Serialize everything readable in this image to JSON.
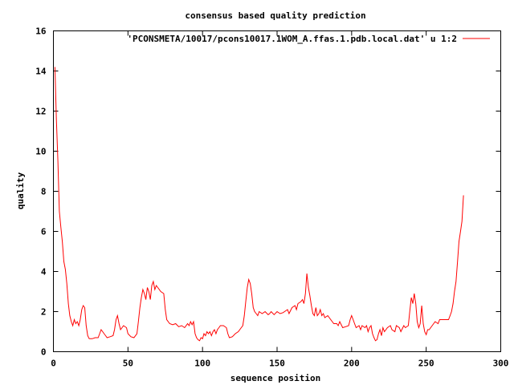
{
  "chart_data": {
    "type": "line",
    "title": "consensus based quality prediction",
    "xlabel": "sequence position",
    "ylabel": "quality",
    "xlim": [
      0,
      300
    ],
    "ylim": [
      0,
      16
    ],
    "xticks": [
      0,
      50,
      100,
      150,
      200,
      250,
      300
    ],
    "yticks": [
      0,
      2,
      4,
      6,
      8,
      10,
      12,
      14,
      16
    ],
    "grid": false,
    "legend_position": "top-right",
    "series": [
      {
        "name": "'PCONSMETA/10017/pcons10017.1WOM_A.ffas.1.pdb.local.dat' u 1:2",
        "color": "#ff0000",
        "points": [
          [
            1,
            14.2
          ],
          [
            2,
            11.6
          ],
          [
            3,
            9.5
          ],
          [
            4,
            7.0
          ],
          [
            5,
            6.2
          ],
          [
            6,
            5.5
          ],
          [
            7,
            4.5
          ],
          [
            8,
            4.1
          ],
          [
            9,
            3.4
          ],
          [
            10,
            2.4
          ],
          [
            11,
            1.8
          ],
          [
            12,
            1.5
          ],
          [
            13,
            1.3
          ],
          [
            14,
            1.6
          ],
          [
            15,
            1.4
          ],
          [
            16,
            1.5
          ],
          [
            17,
            1.3
          ],
          [
            18,
            1.6
          ],
          [
            19,
            2.1
          ],
          [
            20,
            2.3
          ],
          [
            21,
            2.2
          ],
          [
            22,
            1.3
          ],
          [
            23,
            0.8
          ],
          [
            24,
            0.65
          ],
          [
            26,
            0.65
          ],
          [
            28,
            0.7
          ],
          [
            30,
            0.7
          ],
          [
            31,
            0.9
          ],
          [
            32,
            1.1
          ],
          [
            33,
            1.0
          ],
          [
            34,
            0.9
          ],
          [
            35,
            0.8
          ],
          [
            36,
            0.7
          ],
          [
            38,
            0.75
          ],
          [
            40,
            0.8
          ],
          [
            41,
            1.1
          ],
          [
            42,
            1.6
          ],
          [
            43,
            1.8
          ],
          [
            44,
            1.4
          ],
          [
            45,
            1.1
          ],
          [
            47,
            1.3
          ],
          [
            49,
            1.2
          ],
          [
            50,
            0.9
          ],
          [
            52,
            0.75
          ],
          [
            54,
            0.7
          ],
          [
            56,
            0.9
          ],
          [
            57,
            1.5
          ],
          [
            58,
            2.2
          ],
          [
            59,
            2.7
          ],
          [
            60,
            3.1
          ],
          [
            61,
            2.9
          ],
          [
            62,
            2.6
          ],
          [
            63,
            3.2
          ],
          [
            64,
            3.0
          ],
          [
            65,
            2.6
          ],
          [
            66,
            3.3
          ],
          [
            67,
            3.5
          ],
          [
            68,
            3.1
          ],
          [
            69,
            3.3
          ],
          [
            70,
            3.2
          ],
          [
            72,
            3.0
          ],
          [
            74,
            2.9
          ],
          [
            75,
            2.1
          ],
          [
            76,
            1.6
          ],
          [
            78,
            1.4
          ],
          [
            80,
            1.35
          ],
          [
            82,
            1.4
          ],
          [
            84,
            1.25
          ],
          [
            86,
            1.3
          ],
          [
            88,
            1.2
          ],
          [
            90,
            1.4
          ],
          [
            91,
            1.3
          ],
          [
            92,
            1.5
          ],
          [
            93,
            1.35
          ],
          [
            94,
            1.5
          ],
          [
            95,
            0.9
          ],
          [
            96,
            0.7
          ],
          [
            97,
            0.6
          ],
          [
            98,
            0.55
          ],
          [
            99,
            0.7
          ],
          [
            100,
            0.65
          ],
          [
            101,
            0.9
          ],
          [
            102,
            0.8
          ],
          [
            103,
            1.0
          ],
          [
            104,
            0.9
          ],
          [
            105,
            1.0
          ],
          [
            106,
            0.8
          ],
          [
            107,
            1.0
          ],
          [
            108,
            1.1
          ],
          [
            109,
            0.9
          ],
          [
            110,
            1.1
          ],
          [
            111,
            1.2
          ],
          [
            112,
            1.3
          ],
          [
            114,
            1.3
          ],
          [
            116,
            1.2
          ],
          [
            117,
            0.9
          ],
          [
            118,
            0.7
          ],
          [
            120,
            0.75
          ],
          [
            122,
            0.9
          ],
          [
            124,
            1.0
          ],
          [
            126,
            1.2
          ],
          [
            127,
            1.3
          ],
          [
            128,
            1.8
          ],
          [
            129,
            2.5
          ],
          [
            130,
            3.2
          ],
          [
            131,
            3.6
          ],
          [
            132,
            3.4
          ],
          [
            133,
            2.9
          ],
          [
            134,
            2.2
          ],
          [
            135,
            2.0
          ],
          [
            136,
            1.9
          ],
          [
            137,
            1.8
          ],
          [
            138,
            2.0
          ],
          [
            140,
            1.9
          ],
          [
            142,
            2.0
          ],
          [
            144,
            1.85
          ],
          [
            145,
            1.9
          ],
          [
            146,
            2.0
          ],
          [
            148,
            1.85
          ],
          [
            150,
            2.0
          ],
          [
            152,
            1.9
          ],
          [
            154,
            1.95
          ],
          [
            155,
            2.0
          ],
          [
            157,
            2.1
          ],
          [
            158,
            1.9
          ],
          [
            160,
            2.2
          ],
          [
            162,
            2.3
          ],
          [
            163,
            2.1
          ],
          [
            164,
            2.4
          ],
          [
            166,
            2.5
          ],
          [
            167,
            2.6
          ],
          [
            168,
            2.4
          ],
          [
            169,
            2.9
          ],
          [
            170,
            3.9
          ],
          [
            171,
            3.2
          ],
          [
            172,
            2.8
          ],
          [
            173,
            2.3
          ],
          [
            174,
            1.9
          ],
          [
            175,
            1.8
          ],
          [
            176,
            2.2
          ],
          [
            177,
            1.8
          ],
          [
            178,
            1.9
          ],
          [
            179,
            2.1
          ],
          [
            180,
            1.8
          ],
          [
            181,
            1.9
          ],
          [
            182,
            1.7
          ],
          [
            184,
            1.8
          ],
          [
            186,
            1.6
          ],
          [
            188,
            1.4
          ],
          [
            190,
            1.4
          ],
          [
            191,
            1.3
          ],
          [
            192,
            1.5
          ],
          [
            194,
            1.2
          ],
          [
            196,
            1.25
          ],
          [
            198,
            1.3
          ],
          [
            199,
            1.6
          ],
          [
            200,
            1.8
          ],
          [
            201,
            1.6
          ],
          [
            202,
            1.4
          ],
          [
            203,
            1.2
          ],
          [
            205,
            1.3
          ],
          [
            206,
            1.1
          ],
          [
            207,
            1.3
          ],
          [
            209,
            1.2
          ],
          [
            210,
            1.3
          ],
          [
            211,
            1.0
          ],
          [
            212,
            1.2
          ],
          [
            213,
            1.3
          ],
          [
            214,
            0.9
          ],
          [
            215,
            0.7
          ],
          [
            216,
            0.55
          ],
          [
            217,
            0.6
          ],
          [
            218,
            0.9
          ],
          [
            219,
            1.1
          ],
          [
            220,
            0.8
          ],
          [
            221,
            1.2
          ],
          [
            222,
            1.0
          ],
          [
            224,
            1.2
          ],
          [
            226,
            1.3
          ],
          [
            227,
            1.1
          ],
          [
            229,
            1.0
          ],
          [
            230,
            1.3
          ],
          [
            232,
            1.2
          ],
          [
            233,
            1.0
          ],
          [
            235,
            1.3
          ],
          [
            236,
            1.2
          ],
          [
            238,
            1.3
          ],
          [
            239,
            2.0
          ],
          [
            240,
            2.7
          ],
          [
            241,
            2.4
          ],
          [
            242,
            2.9
          ],
          [
            243,
            2.4
          ],
          [
            244,
            1.5
          ],
          [
            245,
            1.2
          ],
          [
            246,
            1.4
          ],
          [
            247,
            2.3
          ],
          [
            248,
            1.4
          ],
          [
            249,
            1.0
          ],
          [
            250,
            0.85
          ],
          [
            251,
            1.1
          ],
          [
            252,
            1.1
          ],
          [
            254,
            1.3
          ],
          [
            256,
            1.5
          ],
          [
            258,
            1.4
          ],
          [
            259,
            1.6
          ],
          [
            260,
            1.6
          ],
          [
            262,
            1.6
          ],
          [
            264,
            1.6
          ],
          [
            265,
            1.6
          ],
          [
            266,
            1.8
          ],
          [
            267,
            2.0
          ],
          [
            268,
            2.4
          ],
          [
            269,
            3.0
          ],
          [
            270,
            3.5
          ],
          [
            271,
            4.5
          ],
          [
            272,
            5.5
          ],
          [
            273,
            6.0
          ],
          [
            274,
            6.5
          ],
          [
            275,
            7.8
          ]
        ]
      }
    ]
  }
}
